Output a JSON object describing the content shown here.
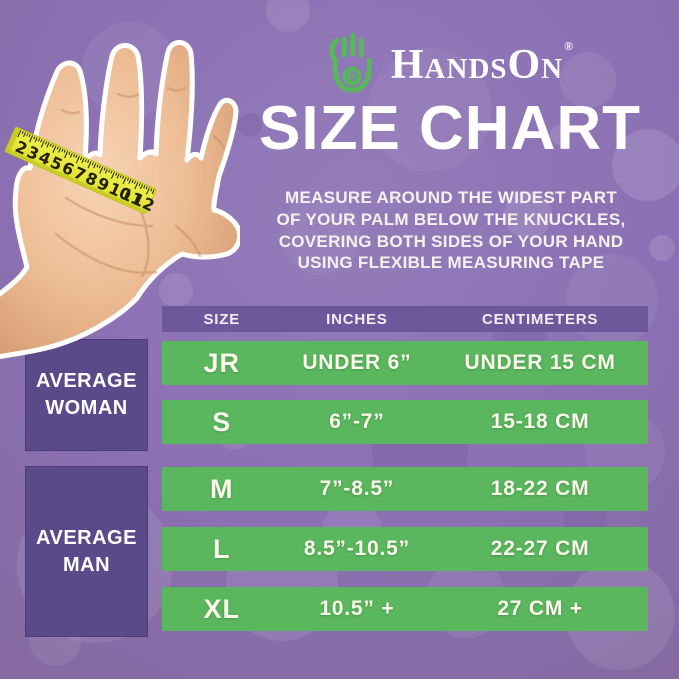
{
  "logo": {
    "brand": "HandsOn",
    "registered": "®"
  },
  "title": "SIZE CHART",
  "instructions": {
    "line1": "MEASURE AROUND THE WIDEST PART",
    "line2": "OF YOUR PALM BELOW THE KNUCKLES,",
    "line3": "COVERING BOTH SIDES OF YOUR HAND",
    "line4": "USING FLEXIBLE MEASURING TAPE"
  },
  "table": {
    "headers": {
      "size": "SIZE",
      "inches": "INCHES",
      "centimeters": "CENTIMETERS"
    },
    "group_woman": {
      "line1": "AVERAGE",
      "line2": "WOMAN"
    },
    "group_man": {
      "line1": "AVERAGE",
      "line2": "MAN"
    },
    "rows": [
      {
        "size": "JR",
        "inches": "UNDER 6”",
        "centimeters": "UNDER 15 CM"
      },
      {
        "size": "S",
        "inches": "6”-7”",
        "centimeters": "15-18 CM"
      },
      {
        "size": "M",
        "inches": "7”-8.5”",
        "centimeters": "18-22 CM"
      },
      {
        "size": "L",
        "inches": "8.5”-10.5”",
        "centimeters": "22-27 CM"
      },
      {
        "size": "XL",
        "inches": "10.5” +",
        "centimeters": "27 CM +"
      }
    ]
  },
  "hand_tape": {
    "numbers": [
      "2",
      "3",
      "4",
      "5",
      "6",
      "7",
      "8",
      "9",
      "10",
      "11",
      "12"
    ]
  },
  "chart_data": {
    "type": "table",
    "title": "SIZE CHART",
    "columns": [
      "SIZE",
      "INCHES",
      "CENTIMETERS"
    ],
    "row_groups": [
      {
        "group": "AVERAGE WOMAN",
        "rows": [
          [
            "JR",
            "UNDER 6”",
            "UNDER 15 CM"
          ],
          [
            "S",
            "6”-7”",
            "15-18 CM"
          ]
        ]
      },
      {
        "group": "AVERAGE MAN",
        "rows": [
          [
            "M",
            "7”-8.5”",
            "18-22 CM"
          ],
          [
            "L",
            "8.5”-10.5”",
            "22-27 CM"
          ],
          [
            "XL",
            "10.5” +",
            "27 CM +"
          ]
        ]
      }
    ]
  },
  "colors": {
    "background": "#8b70b3",
    "row_green": "#5ab75e",
    "panel_purple": "#5a4a8a",
    "header_purple": "#6c589a",
    "logo_green": "#58b65c",
    "tape_yellow": "#e8ea3e",
    "text_light": "#fbf7ec"
  }
}
